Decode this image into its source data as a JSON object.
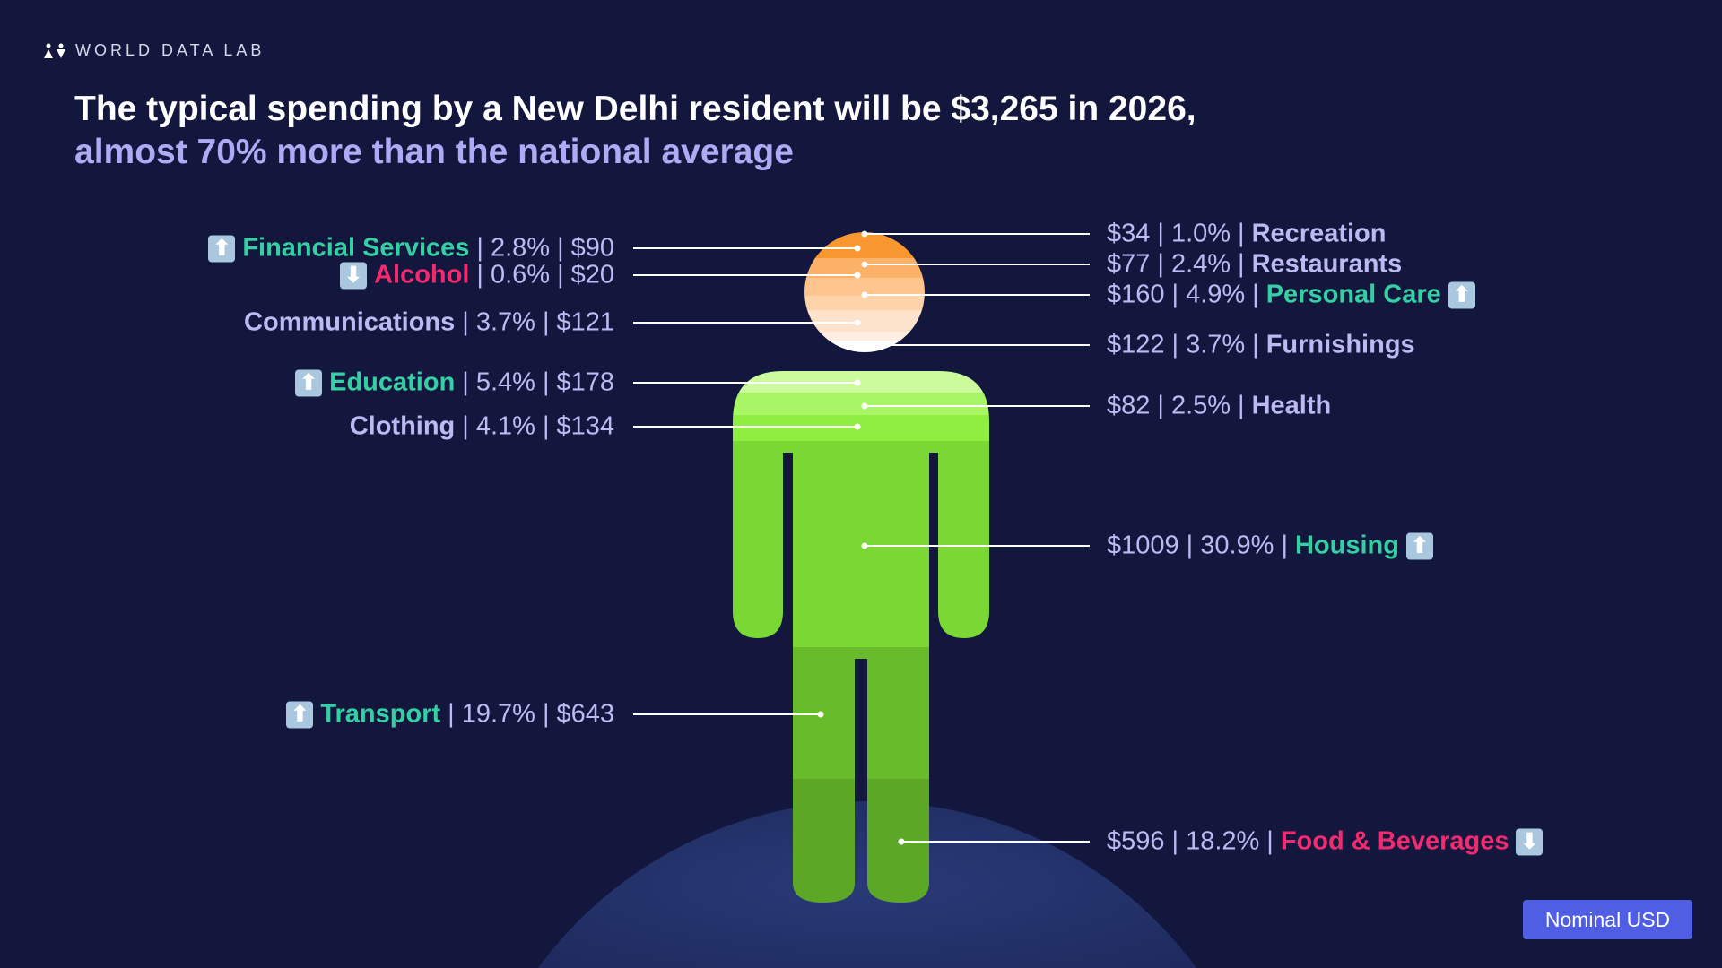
{
  "brand": "WORLD DATA LAB",
  "title_line1": "The typical spending by a New Delhi resident will be $3,265 in 2026,",
  "title_line2": "almost 70% more than the national average",
  "currency_button": "Nominal USD",
  "colors": {
    "increase": "#35cfa4",
    "decrease": "#f22a6f",
    "neutral": "#bdb9f2",
    "head_top": "#f8962f",
    "body": "#7bdc35",
    "button": "#4f5ee3"
  },
  "chart_data": {
    "type": "pictogram",
    "total": "$3,265",
    "year": 2026,
    "categories": [
      {
        "name": "Financial Services",
        "pct": "2.8%",
        "value": "$90",
        "trend": "up",
        "side": "left"
      },
      {
        "name": "Alcohol",
        "pct": "0.6%",
        "value": "$20",
        "trend": "down",
        "side": "left"
      },
      {
        "name": "Communications",
        "pct": "3.7%",
        "value": "$121",
        "trend": "none",
        "side": "left"
      },
      {
        "name": "Education",
        "pct": "5.4%",
        "value": "$178",
        "trend": "up",
        "side": "left"
      },
      {
        "name": "Clothing",
        "pct": "4.1%",
        "value": "$134",
        "trend": "none",
        "side": "left"
      },
      {
        "name": "Transport",
        "pct": "19.7%",
        "value": "$643",
        "trend": "up",
        "side": "left"
      },
      {
        "name": "Recreation",
        "pct": "1.0%",
        "value": "$34",
        "trend": "none",
        "side": "right"
      },
      {
        "name": "Restaurants",
        "pct": "2.4%",
        "value": "$77",
        "trend": "none",
        "side": "right"
      },
      {
        "name": "Personal Care",
        "pct": "4.9%",
        "value": "$160",
        "trend": "up",
        "side": "right"
      },
      {
        "name": "Furnishings",
        "pct": "3.7%",
        "value": "$122",
        "trend": "none",
        "side": "right"
      },
      {
        "name": "Health",
        "pct": "2.5%",
        "value": "$82",
        "trend": "none",
        "side": "right"
      },
      {
        "name": "Housing",
        "pct": "30.9%",
        "value": "$1009",
        "trend": "up",
        "side": "right"
      },
      {
        "name": "Food & Beverages",
        "pct": "18.2%",
        "value": "$596",
        "trend": "down",
        "side": "right"
      }
    ]
  }
}
